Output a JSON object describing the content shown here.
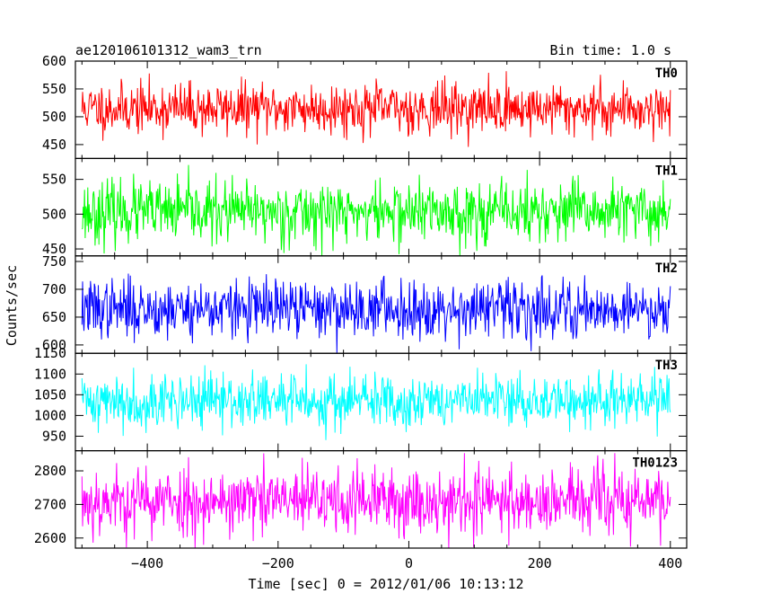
{
  "header": {
    "title": "ae120106101312_wam3_trn",
    "bin_time": "Bin time: 1.0 s"
  },
  "axes": {
    "xlabel": "Time [sec] 0 = 2012/01/06 10:13:12",
    "ylabel": "Counts/sec"
  },
  "chart_data": {
    "type": "line",
    "title": "ae120106101312_wam3_trn",
    "xlabel": "Time [sec] 0 = 2012/01/06 10:13:12",
    "ylabel": "Counts/sec",
    "xlim": [
      -510,
      425
    ],
    "x_ticks": [
      -400,
      -200,
      0,
      200,
      400
    ],
    "x_tick_labels": [
      "−400",
      "−200",
      "0",
      "200",
      "400"
    ],
    "data_x_range": [
      -500,
      400
    ],
    "bin_time_s": 1.0,
    "grid": false,
    "legend": "per-panel label at top-right",
    "panels": [
      {
        "name": "TH0",
        "color": "#ff0000",
        "ylim": [
          425,
          600
        ],
        "y_ticks": [
          450,
          500,
          550,
          600
        ],
        "mean": 515,
        "spread": 23,
        "seed": 11
      },
      {
        "name": "TH1",
        "color": "#00ff00",
        "ylim": [
          440,
          580
        ],
        "y_ticks": [
          450,
          500,
          550
        ],
        "mean": 503,
        "spread": 22,
        "seed": 23
      },
      {
        "name": "TH2",
        "color": "#0000ff",
        "ylim": [
          585,
          760
        ],
        "y_ticks": [
          600,
          650,
          700,
          750
        ],
        "mean": 665,
        "spread": 26,
        "seed": 37
      },
      {
        "name": "TH3",
        "color": "#00ffff",
        "ylim": [
          915,
          1150
        ],
        "y_ticks": [
          950,
          1000,
          1050,
          1100,
          1150
        ],
        "mean": 1035,
        "spread": 33,
        "seed": 41
      },
      {
        "name": "TH0123",
        "color": "#ff00ff",
        "ylim": [
          2570,
          2860
        ],
        "y_ticks": [
          2600,
          2700,
          2800
        ],
        "mean": 2710,
        "spread": 52,
        "seed": 53
      }
    ]
  }
}
